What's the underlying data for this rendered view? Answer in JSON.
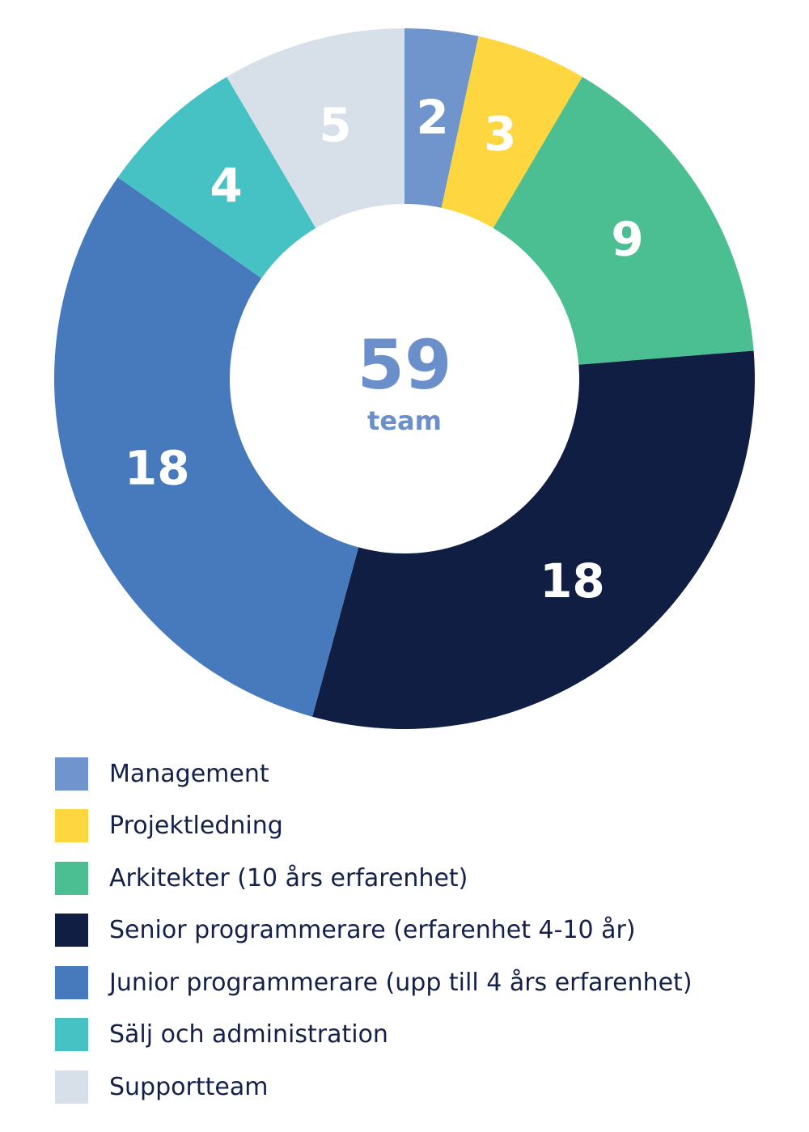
{
  "chart_data": {
    "type": "pie",
    "donut": true,
    "center_value": "59",
    "center_label": "team",
    "center_color": "#6b8fcb",
    "categories": [
      "Management",
      "Projektledning",
      "Arkitekter (10 års erfarenhet)",
      "Senior programmerare (erfarenhet 4-10 år)",
      "Junior programmerare (upp till 4 års erfarenhet)",
      "Sälj och administration",
      "Supportteam"
    ],
    "values": [
      2,
      3,
      9,
      18,
      18,
      4,
      5
    ],
    "colors": [
      "#7095cc",
      "#fdd640",
      "#4bbf92",
      "#0f1e42",
      "#477abc",
      "#47c2c4",
      "#d7dfe8"
    ],
    "legend_position": "bottom-left"
  }
}
